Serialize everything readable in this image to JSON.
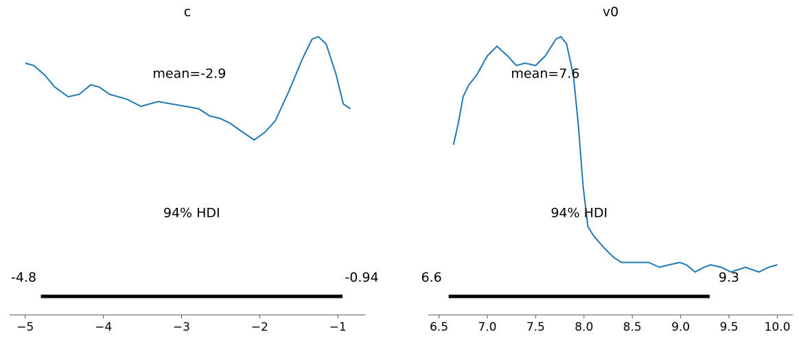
{
  "chart_data": [
    {
      "type": "density",
      "title": "c",
      "point_estimate": -2.9,
      "point_estimate_label": "mean=-2.9",
      "hdi_label": "94% HDI",
      "hdi": [
        -4.8,
        -0.94
      ],
      "color": "#1f77b4",
      "x": [
        -5.0,
        -4.89,
        -4.75,
        -4.62,
        -4.45,
        -4.31,
        -4.16,
        -4.05,
        -3.92,
        -3.7,
        -3.52,
        -3.3,
        -3.13,
        -2.95,
        -2.78,
        -2.64,
        -2.51,
        -2.38,
        -2.25,
        -2.07,
        -1.94,
        -1.8,
        -1.63,
        -1.45,
        -1.33,
        -1.25,
        -1.15,
        -1.02,
        -0.93,
        -0.84
      ],
      "values": [
        0.88,
        0.87,
        0.83,
        0.78,
        0.74,
        0.75,
        0.79,
        0.78,
        0.75,
        0.73,
        0.7,
        0.72,
        0.71,
        0.7,
        0.69,
        0.66,
        0.65,
        0.63,
        0.6,
        0.56,
        0.59,
        0.64,
        0.76,
        0.9,
        0.98,
        0.99,
        0.96,
        0.83,
        0.71,
        0.69
      ],
      "xlim": [
        -5.2,
        -0.65
      ],
      "ylim": [
        0,
        1
      ],
      "xticks": [
        {
          "value": -5,
          "label": "−5"
        },
        {
          "value": -4,
          "label": "−4"
        },
        {
          "value": -3,
          "label": "−3"
        },
        {
          "value": -2,
          "label": "−2"
        },
        {
          "value": -1,
          "label": "−1"
        }
      ]
    },
    {
      "type": "density",
      "title": "v0",
      "point_estimate": 7.6,
      "point_estimate_label": "mean=7.6",
      "hdi_label": "94% HDI",
      "hdi": [
        6.6,
        9.3
      ],
      "color": "#1f77b4",
      "x": [
        6.65,
        6.7,
        6.75,
        6.81,
        6.89,
        7.0,
        7.1,
        7.21,
        7.3,
        7.39,
        7.5,
        7.6,
        7.71,
        7.76,
        7.82,
        7.89,
        7.94,
        7.99,
        8.04,
        8.1,
        8.21,
        8.31,
        8.39,
        8.49,
        8.6,
        8.67,
        8.78,
        8.88,
        8.99,
        9.06,
        9.15,
        9.24,
        9.31,
        9.42,
        9.52,
        9.67,
        9.81,
        9.91,
        10.0
      ],
      "values": [
        0.54,
        0.63,
        0.74,
        0.79,
        0.83,
        0.91,
        0.95,
        0.91,
        0.87,
        0.88,
        0.87,
        0.91,
        0.98,
        0.99,
        0.96,
        0.83,
        0.63,
        0.37,
        0.2,
        0.16,
        0.11,
        0.07,
        0.05,
        0.05,
        0.05,
        0.05,
        0.03,
        0.04,
        0.05,
        0.04,
        0.01,
        0.03,
        0.04,
        0.03,
        0.01,
        0.03,
        0.01,
        0.03,
        0.04
      ],
      "xlim": [
        6.39,
        10.16
      ],
      "ylim": [
        0,
        1
      ],
      "xticks": [
        6.5,
        {
          "value": 7.0,
          "label": "7.0"
        },
        7.5,
        {
          "value": 8.0,
          "label": "8.0"
        },
        8.5,
        {
          "value": 9.0,
          "label": "9.0"
        },
        9.5,
        {
          "value": 10.0,
          "label": "10.0"
        }
      ]
    }
  ]
}
